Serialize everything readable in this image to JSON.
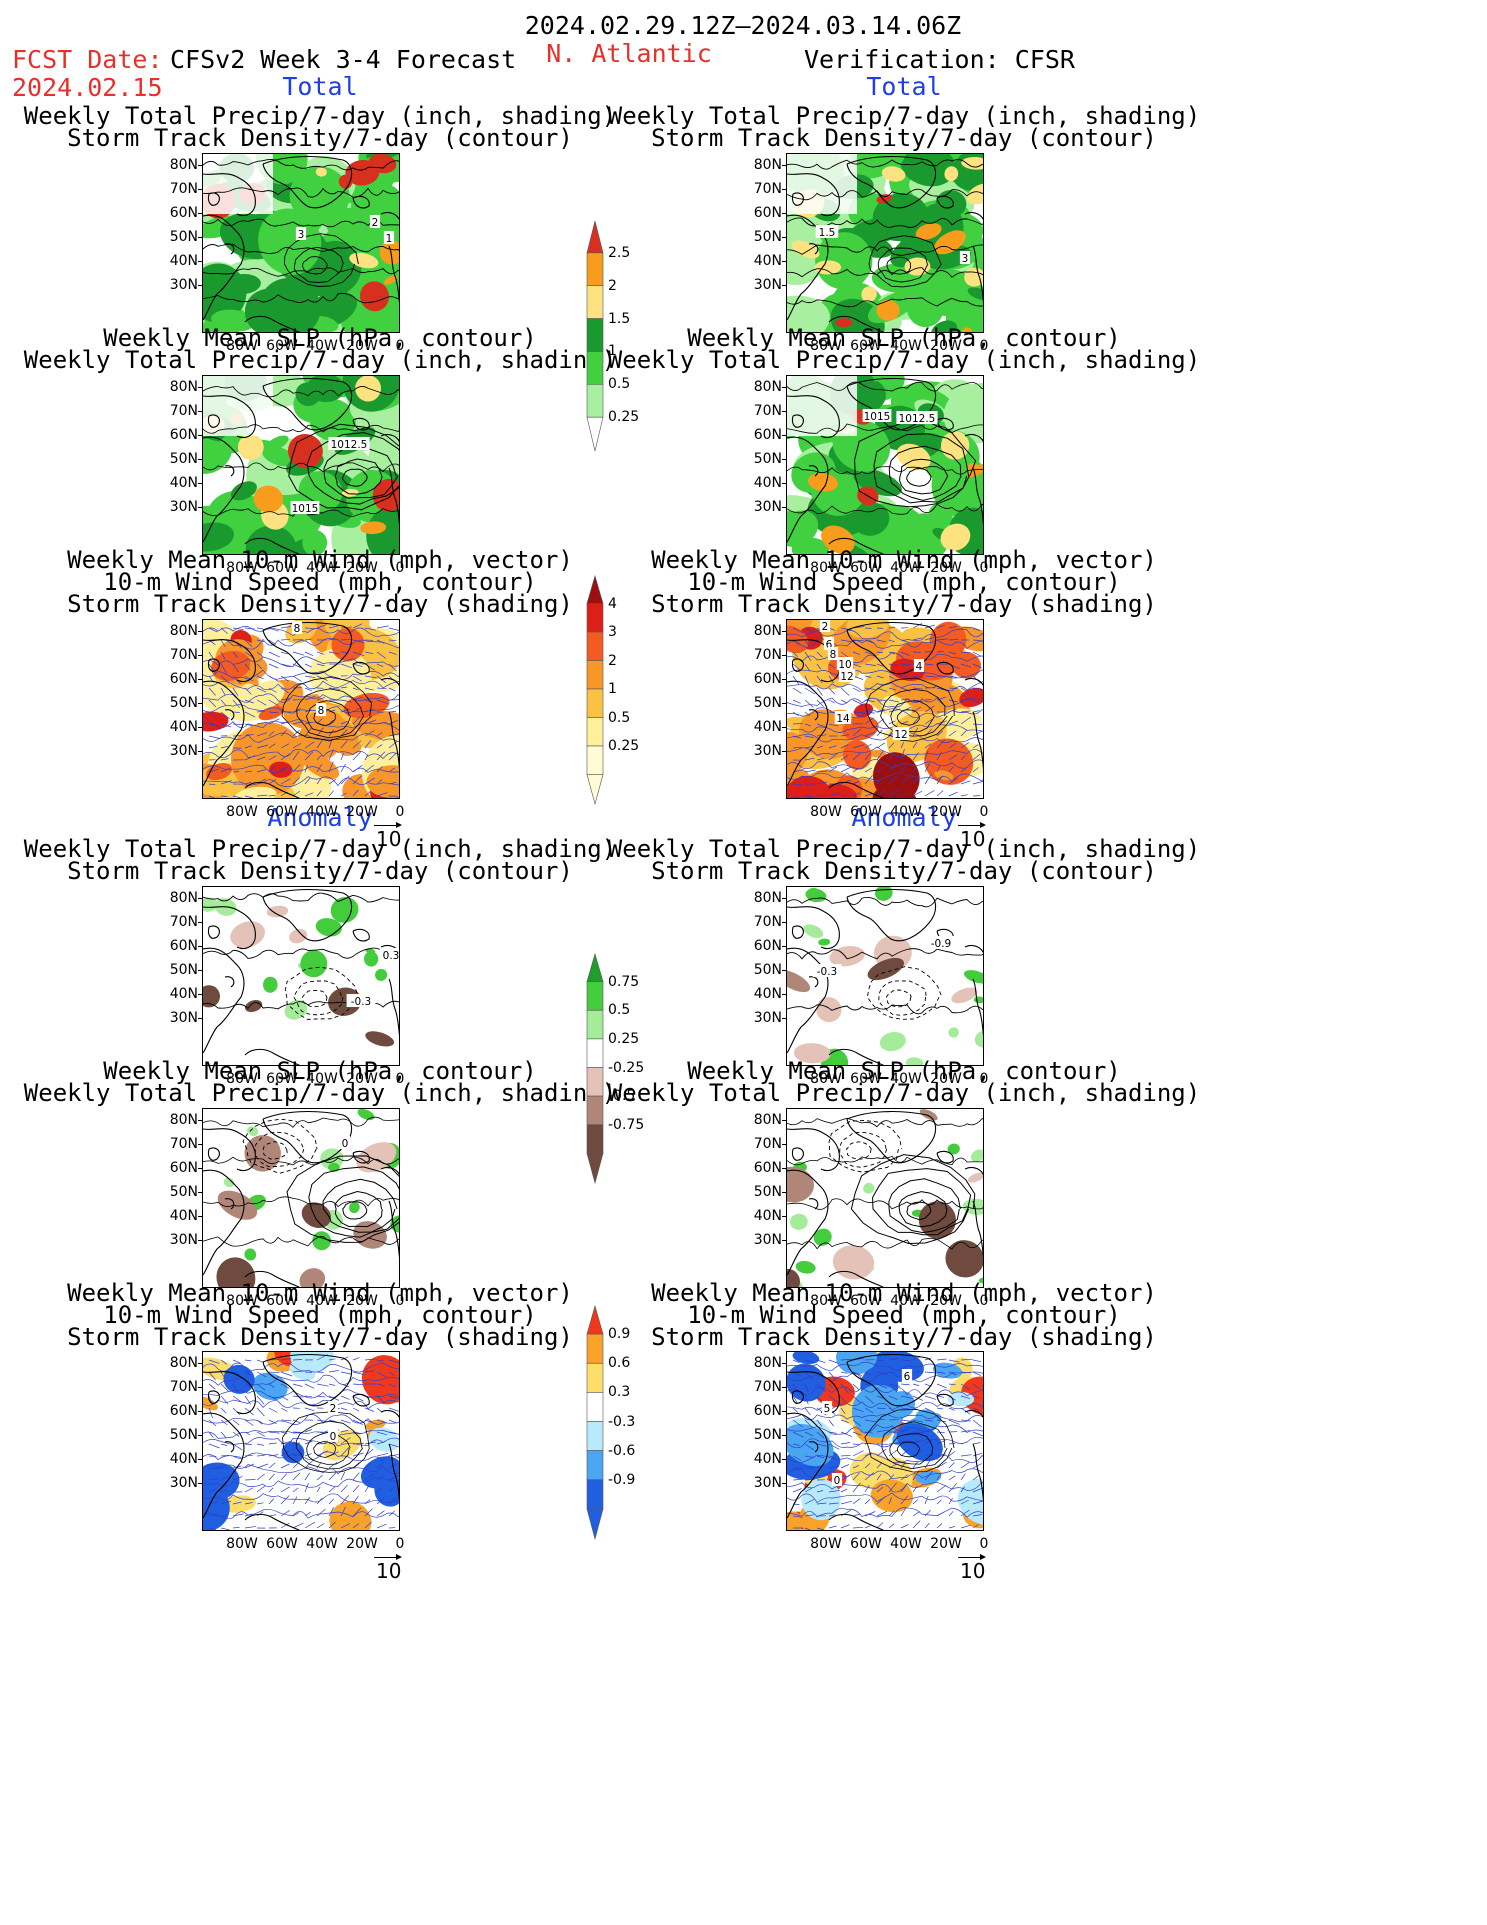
{
  "header": {
    "period": "2024.02.29.12Z–2024.03.14.06Z",
    "fcst_date_label": "FCST Date:",
    "fcst_date": "2024.02.15",
    "product": "CFSv2 Week 3-4 Forecast",
    "region": "N. Atlantic",
    "verification": "Verification: CFSR"
  },
  "sections": {
    "total": "Total",
    "anomaly": "Anomaly"
  },
  "titles": {
    "precip_storm": [
      "Weekly Total Precip/7-day (inch, shading)",
      "Storm Track Density/7-day (contour)"
    ],
    "slp_precip": [
      "Weekly Mean SLP (hPa, contour)",
      "Weekly Total Precip/7-day (inch, shading)"
    ],
    "wind_storm": [
      "Weekly Mean 10-m Wind (mph, vector)",
      "10-m Wind Speed (mph, contour)",
      "Storm Track Density/7-day (shading)"
    ]
  },
  "axes": {
    "lat_ticks": [
      "80N",
      "70N",
      "60N",
      "50N",
      "40N",
      "30N"
    ],
    "lon_ticks": [
      "80W",
      "60W",
      "40W",
      "20W",
      "0"
    ]
  },
  "vector_reference": "10",
  "colorbars": {
    "precip_total": {
      "labels": [
        "2.5",
        "2",
        "1.5",
        "1",
        "0.5",
        "0.25"
      ],
      "colors": [
        "#d7301f",
        "#f79c1d",
        "#fde281",
        "#1a9a2e",
        "#40d040",
        "#a8f0a0"
      ]
    },
    "storm_total": {
      "labels": [
        "4",
        "3",
        "2",
        "1",
        "0.5",
        "0.25"
      ],
      "colors": [
        "#9c0f10",
        "#dd1f1a",
        "#f45b20",
        "#f9962a",
        "#fbc143",
        "#fef09a",
        "#fffbd5"
      ]
    },
    "precip_anom": {
      "labels": [
        "0.75",
        "0.5",
        "0.25",
        "-0.25",
        "-0.5",
        "-0.75"
      ],
      "colors": [
        "#1e9e2a",
        "#43cc3c",
        "#a5ec9a",
        "#ffffff",
        "#e4c2b8",
        "#b08679",
        "#6f4a3e"
      ]
    },
    "storm_anom": {
      "labels": [
        "0.9",
        "0.6",
        "0.3",
        "-0.3",
        "-0.6",
        "-0.9"
      ],
      "colors": [
        "#f0391c",
        "#f9a22a",
        "#fdde6a",
        "#ffffff",
        "#b7eafc",
        "#4aa6f0",
        "#1f5fe0"
      ]
    }
  },
  "panel_labels": {
    "fc_precip": [
      "3",
      "2",
      "1"
    ],
    "fc_slp": [
      "1012.5",
      "1015"
    ],
    "fc_wind": [
      "8",
      "8"
    ],
    "vf_precip": [
      "1.5",
      "3"
    ],
    "vf_slp": [
      "1015",
      "1012.5"
    ],
    "vf_wind": [
      "2",
      "6",
      "8",
      "10",
      "12",
      "4",
      "14",
      "12"
    ],
    "fa_precip": [
      "0.3",
      "-0.3"
    ],
    "fa_slp": [
      "0"
    ],
    "fa_wind": [
      "2",
      "0"
    ],
    "va_precip": [
      "-0.9",
      "-0.3"
    ],
    "va_wind": [
      "6",
      "5",
      "0"
    ]
  }
}
